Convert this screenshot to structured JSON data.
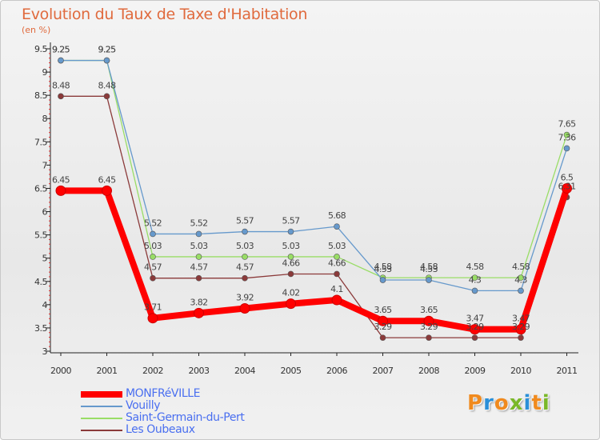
{
  "title": "Evolution du Taux de Taxe d'Habitation",
  "subtitle": "(en %)",
  "chart_data": {
    "type": "line",
    "title": "Evolution du Taux de Taxe d'Habitation",
    "subtitle": "(en %)",
    "xlabel": "",
    "ylabel": "(en %)",
    "categories": [
      "2000",
      "2001",
      "2002",
      "2003",
      "2004",
      "2005",
      "2006",
      "2007",
      "2008",
      "2009",
      "2010",
      "2011"
    ],
    "ylim": [
      3,
      9.5
    ],
    "yticks": [
      "3",
      "3.5",
      "4",
      "4.5",
      "5",
      "5.5",
      "6",
      "6.5",
      "7",
      "7.5",
      "8",
      "8.5",
      "9",
      "9.5"
    ],
    "grid": false,
    "legend_position": "bottom-left",
    "series": [
      {
        "name": "MONFRéVILLE",
        "color": "#ff0000",
        "values": [
          6.45,
          6.45,
          3.71,
          3.82,
          3.92,
          4.02,
          4.1,
          3.65,
          3.65,
          3.47,
          3.47,
          6.5
        ],
        "labels": [
          "6.45",
          "6.45",
          "3.71",
          "3.82",
          "3.92",
          "4.02",
          "4.1",
          "3.65",
          "3.65",
          "3.47",
          "3.47",
          "6.5"
        ]
      },
      {
        "name": "Vouilly",
        "color": "#6699cc",
        "values": [
          9.25,
          9.25,
          5.52,
          5.52,
          5.57,
          5.57,
          5.68,
          4.53,
          4.53,
          4.3,
          4.3,
          7.36
        ],
        "labels": [
          "9.25",
          "9.25",
          "5.52",
          "5.52",
          "5.57",
          "5.57",
          "5.68",
          "4.53",
          "4.53",
          "4.3",
          "4.3",
          "7.36"
        ]
      },
      {
        "name": "Saint-Germain-du-Pert",
        "color": "#99dd66",
        "values": [
          9.25,
          9.25,
          5.03,
          5.03,
          5.03,
          5.03,
          5.03,
          4.58,
          4.58,
          4.58,
          4.58,
          7.65
        ],
        "labels": [
          "9.25",
          "9.25",
          "5.03",
          "5.03",
          "5.03",
          "5.03",
          "5.03",
          "4.58",
          "4.58",
          "4.58",
          "4.58",
          "7.65"
        ]
      },
      {
        "name": "Les Oubeaux",
        "color": "#8b3a3a",
        "values": [
          8.48,
          8.48,
          4.57,
          4.57,
          4.57,
          4.66,
          4.66,
          3.29,
          3.29,
          3.29,
          3.29,
          6.31
        ],
        "labels": [
          "8.48",
          "8.48",
          "4.57",
          "4.57",
          "4.57",
          "4.66",
          "4.66",
          "3.29",
          "3.29",
          "3.29",
          "3.29",
          "6.31"
        ]
      }
    ]
  },
  "legend": [
    {
      "label": "MONFRéVILLE",
      "color": "#ff0000"
    },
    {
      "label": "Vouilly",
      "color": "#6699cc"
    },
    {
      "label": "Saint-Germain-du-Pert",
      "color": "#99dd66"
    },
    {
      "label": "Les Oubeaux",
      "color": "#8b3a3a"
    }
  ],
  "logo": {
    "letters": [
      "P",
      "r",
      "o",
      "x",
      "i",
      "t",
      "i"
    ],
    "colors": [
      "#f08a1e",
      "#2a8fd8",
      "#f08a1e",
      "#7ab828",
      "#2a8fd8",
      "#f08a1e",
      "#7ab828"
    ]
  }
}
